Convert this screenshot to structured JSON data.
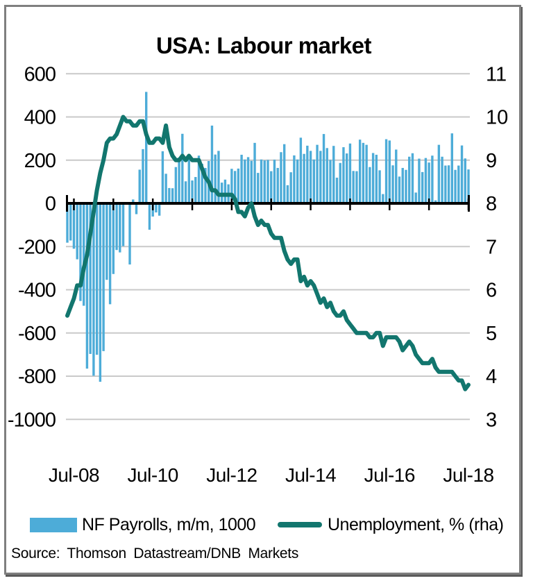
{
  "chart_data": {
    "type": "bar",
    "combo": "bar + line, dual axis",
    "title": "USA: Labour market",
    "x_frequency": "monthly",
    "x_start": "May-08",
    "x_end": "Jul-18",
    "x_tick_labels": [
      "Jul-08",
      "Jul-10",
      "Jul-12",
      "Jul-14",
      "Jul-16",
      "Jul-18"
    ],
    "x_tick_indices": [
      2,
      26,
      50,
      74,
      98,
      122
    ],
    "year_tick_indices": [
      2,
      14,
      26,
      38,
      50,
      62,
      74,
      86,
      98,
      110,
      122
    ],
    "left_axis": {
      "min": -1000,
      "max": 600,
      "ticks": [
        600,
        400,
        200,
        0,
        -200,
        -400,
        -600,
        -800,
        -1000
      ]
    },
    "right_axis": {
      "min": 3,
      "max": 11,
      "ticks": [
        11,
        10,
        9,
        8,
        7,
        6,
        5,
        4,
        3
      ]
    },
    "grid": true,
    "legend_position": "bottom",
    "series": [
      {
        "name": "NF Payrolls, m/m, 1000",
        "type": "bar",
        "axis": "left",
        "color": "#4dacd8",
        "values": [
          -182,
          -172,
          -210,
          -259,
          -452,
          -474,
          -765,
          -697,
          -798,
          -701,
          -826,
          -684,
          -354,
          -467,
          -327,
          -216,
          -227,
          -198,
          -6,
          -283,
          18,
          -50,
          156,
          251,
          516,
          -122,
          -61,
          -42,
          -57,
          241,
          137,
          71,
          70,
          168,
          212,
          322,
          102,
          217,
          106,
          122,
          221,
          183,
          164,
          196,
          360,
          226,
          243,
          96,
          110,
          88,
          160,
          150,
          161,
          225,
          203,
          214,
          197,
          280,
          141,
          203,
          199,
          201,
          149,
          202,
          164,
          237,
          274,
          84,
          144,
          222,
          203,
          304,
          229,
          267,
          243,
          203,
          271,
          243,
          321,
          256,
          201,
          266,
          119,
          187,
          260,
          231,
          277,
          150,
          149,
          295,
          280,
          271,
          168,
          233,
          225,
          153,
          43,
          297,
          291,
          176,
          249,
          124,
          164,
          155,
          216,
          232,
          50,
          207,
          145,
          210,
          189,
          221,
          14,
          271,
          216,
          175,
          176,
          324,
          155,
          175,
          268,
          208,
          157
        ]
      },
      {
        "name": "Unemployment, % (rha)",
        "type": "line",
        "axis": "right",
        "color": "#12766e",
        "values": [
          5.4,
          5.6,
          5.8,
          6.1,
          6.1,
          6.5,
          6.8,
          7.3,
          7.8,
          8.3,
          8.7,
          9.0,
          9.4,
          9.5,
          9.5,
          9.6,
          9.8,
          10.0,
          9.9,
          9.9,
          9.8,
          9.8,
          9.9,
          9.9,
          9.6,
          9.4,
          9.4,
          9.5,
          9.5,
          9.4,
          9.8,
          9.3,
          9.1,
          9.0,
          9.0,
          9.1,
          9.0,
          9.1,
          9.0,
          9.0,
          9.0,
          8.8,
          8.6,
          8.5,
          8.3,
          8.3,
          8.2,
          8.2,
          8.2,
          8.2,
          8.2,
          8.1,
          7.8,
          7.8,
          7.7,
          7.9,
          8.0,
          7.7,
          7.5,
          7.6,
          7.5,
          7.5,
          7.3,
          7.2,
          7.2,
          7.2,
          6.9,
          6.7,
          6.6,
          6.7,
          6.7,
          6.2,
          6.3,
          6.1,
          6.2,
          6.1,
          5.9,
          5.7,
          5.8,
          5.6,
          5.7,
          5.5,
          5.4,
          5.4,
          5.5,
          5.3,
          5.2,
          5.1,
          5.0,
          5.0,
          5.0,
          5.0,
          4.9,
          4.9,
          5.0,
          5.0,
          4.7,
          4.9,
          4.9,
          4.9,
          4.9,
          4.8,
          4.6,
          4.7,
          4.8,
          4.7,
          4.5,
          4.4,
          4.3,
          4.3,
          4.3,
          4.4,
          4.2,
          4.1,
          4.1,
          4.1,
          4.1,
          4.1,
          4.0,
          3.9,
          3.9,
          3.7,
          3.8
        ]
      }
    ]
  },
  "legend": {
    "items": [
      {
        "label": "NF Payrolls, m/m, 1000",
        "swatch": "bar"
      },
      {
        "label": "Unemployment, % (rha)",
        "swatch": "line"
      }
    ]
  },
  "source": {
    "text": "Source: Thomson Datastream/DNB Markets"
  },
  "colors": {
    "grid": "#c9c9c9",
    "axis": "#000000",
    "text": "#000000",
    "frame_border": "#7f7f7f"
  }
}
